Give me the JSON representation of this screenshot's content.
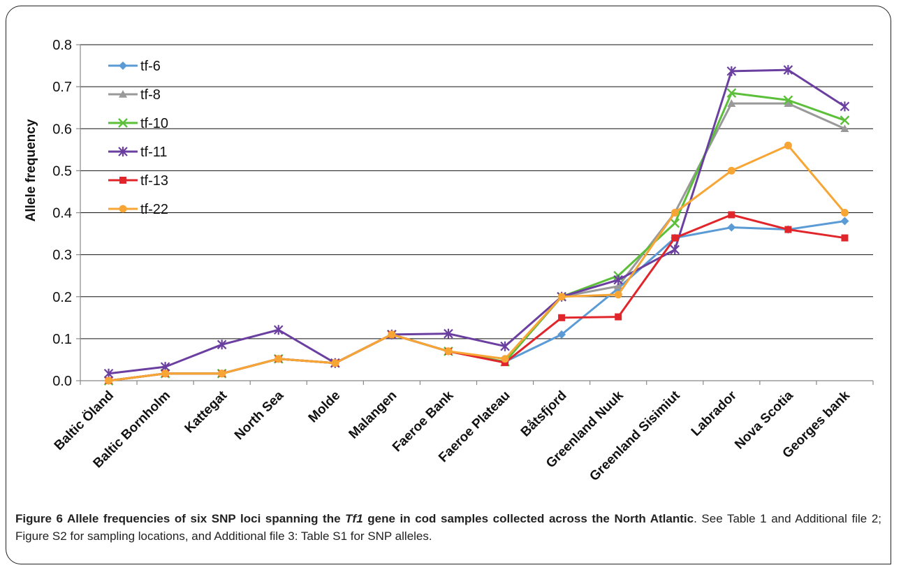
{
  "chart_data": {
    "type": "line",
    "title": "",
    "xlabel": "",
    "ylabel": "Allele frequency",
    "ylim": [
      0,
      0.8
    ],
    "yticks": [
      "0.0",
      "0.1",
      "0.2",
      "0.3",
      "0.4",
      "0.5",
      "0.6",
      "0.7",
      "0.8"
    ],
    "grid": "horizontal",
    "legend_position": "top-left",
    "categories": [
      "Baltic Öland",
      "Baltic Bornholm",
      "Kattegat",
      "North Sea",
      "Molde",
      "Malangen",
      "Faeroe Bank",
      "Faeroe Plateau",
      "Båtsfjord",
      "Greenland Nuuk",
      "Greenland Sisimiut",
      "Labrador",
      "Nova Scotia",
      "Georges bank"
    ],
    "series": [
      {
        "name": "tf-6",
        "color": "#5b9bd5",
        "marker": "diamond",
        "values": [
          0.0,
          0.017,
          0.017,
          0.052,
          0.042,
          0.11,
          0.07,
          0.045,
          0.11,
          0.22,
          0.34,
          0.365,
          0.36,
          0.38
        ]
      },
      {
        "name": "tf-8",
        "color": "#999999",
        "marker": "triangle",
        "values": [
          0.0,
          0.017,
          0.017,
          0.052,
          0.042,
          0.11,
          0.07,
          0.045,
          0.2,
          0.225,
          0.4,
          0.66,
          0.66,
          0.6
        ]
      },
      {
        "name": "tf-10",
        "color": "#5bbf3a",
        "marker": "x",
        "values": [
          0.0,
          0.017,
          0.017,
          0.052,
          0.042,
          0.11,
          0.07,
          0.045,
          0.2,
          0.25,
          0.375,
          0.685,
          0.668,
          0.62
        ]
      },
      {
        "name": "tf-11",
        "color": "#6a3fa0",
        "marker": "star",
        "values": [
          0.017,
          0.033,
          0.086,
          0.121,
          0.042,
          0.11,
          0.112,
          0.082,
          0.2,
          0.24,
          0.312,
          0.737,
          0.74,
          0.653
        ]
      },
      {
        "name": "tf-13",
        "color": "#e0262b",
        "marker": "square",
        "values": [
          0.0,
          0.017,
          0.017,
          0.052,
          0.042,
          0.11,
          0.07,
          0.043,
          0.15,
          0.152,
          0.34,
          0.395,
          0.36,
          0.34
        ]
      },
      {
        "name": "tf-22",
        "color": "#f7a535",
        "marker": "circle",
        "values": [
          0.0,
          0.017,
          0.017,
          0.052,
          0.042,
          0.11,
          0.07,
          0.052,
          0.2,
          0.205,
          0.4,
          0.5,
          0.56,
          0.4
        ]
      }
    ]
  },
  "caption": {
    "label": "Figure 6 Allele frequencies of six SNP loci spanning the ",
    "gene": "Tf1",
    "label_rest": " gene in cod samples collected across the North Atlantic",
    "text": ". See Table 1 and Additional file 2; Figure S2 for sampling locations, and Additional file 3: Table S1 for SNP alleles."
  }
}
